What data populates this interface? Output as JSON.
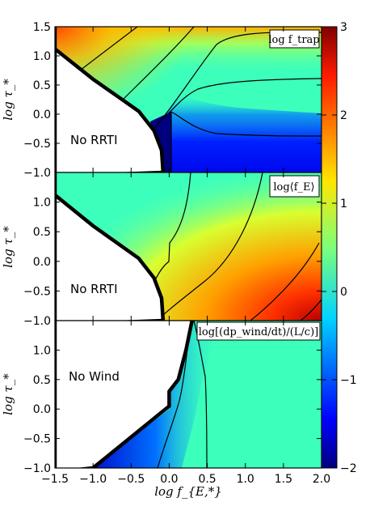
{
  "chart_data": {
    "type": "heatmap",
    "xlabel": "log f_{E,*}",
    "xlim": [
      -1.5,
      2.0
    ],
    "x_ticks": [
      "−1.5",
      "−1.0",
      "−0.5",
      "0.0",
      "0.5",
      "1.0",
      "1.5",
      "2.0"
    ],
    "colorbar": {
      "range": [
        -2,
        3
      ],
      "ticks": [
        "−2",
        "−1",
        "0",
        "1",
        "2",
        "3"
      ],
      "colormap": "jet"
    },
    "panels": [
      {
        "title": "log f_trap",
        "ylabel": "log τ_*",
        "ylim": [
          -1.0,
          1.5
        ],
        "y_ticks": [
          "1.5",
          "1.0",
          "0.5",
          "0.0",
          "−0.5",
          "−1.0"
        ],
        "region_label": "No RRTI",
        "boundary": [
          [
            -1.5,
            1.12
          ],
          [
            -1.0,
            0.6
          ],
          [
            -0.65,
            0.28
          ],
          [
            -0.4,
            0.05
          ],
          [
            -0.2,
            -0.28
          ],
          [
            -0.1,
            -0.62
          ],
          [
            -0.08,
            -1.0
          ]
        ]
      },
      {
        "title": "log⟨f_E⟩",
        "ylabel": "log τ_*",
        "ylim": [
          -1.0,
          1.5
        ],
        "y_ticks": [
          "1.0",
          "0.5",
          "0.0",
          "−0.5",
          "−1.0"
        ],
        "region_label": "No RRTI",
        "boundary": [
          [
            -1.5,
            1.12
          ],
          [
            -1.0,
            0.6
          ],
          [
            -0.65,
            0.28
          ],
          [
            -0.4,
            0.05
          ],
          [
            -0.2,
            -0.28
          ],
          [
            -0.1,
            -0.62
          ],
          [
            -0.08,
            -1.0
          ]
        ]
      },
      {
        "title": "log[(dp_wind/dt)/(L/c)]",
        "ylabel": "log τ_*",
        "ylim": [
          -1.0,
          1.5
        ],
        "y_ticks": [
          "1.0",
          "0.5",
          "0.0",
          "−0.5",
          "−1.0"
        ],
        "region_label": "No Wind",
        "boundary": [
          [
            -1.0,
            -1.0
          ],
          [
            0.0,
            0.05
          ],
          [
            0.0,
            0.3
          ],
          [
            0.12,
            0.5
          ],
          [
            0.22,
            1.0
          ],
          [
            0.3,
            1.5
          ]
        ]
      }
    ]
  }
}
